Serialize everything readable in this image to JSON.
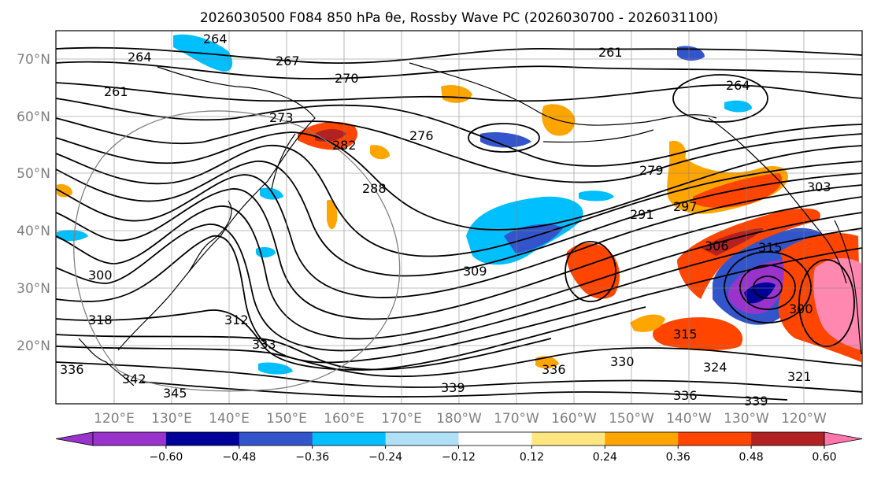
{
  "title": "2026030500 F084 850 hPa θe, Rossby Wave PC (2026030700 - 2026031100)",
  "map": {
    "lat_labels": [
      "70°N",
      "60°N",
      "50°N",
      "40°N",
      "30°N",
      "20°N"
    ],
    "lon_labels": [
      "120°E",
      "130°E",
      "140°E",
      "150°E",
      "160°E",
      "170°E",
      "180°W",
      "170°W",
      "160°W",
      "150°W",
      "140°W",
      "130°W",
      "120°W"
    ],
    "contour_labels": [
      "264",
      "264",
      "267",
      "270",
      "261",
      "261",
      "264",
      "273",
      "276",
      "282",
      "288",
      "279",
      "291",
      "297",
      "300",
      "303",
      "306",
      "309",
      "312",
      "315",
      "315",
      "318",
      "321",
      "324",
      "330",
      "333",
      "336",
      "336",
      "336",
      "339",
      "339",
      "342",
      "345",
      "300"
    ]
  },
  "colorbar": {
    "ticks": [
      "−0.60",
      "−0.48",
      "−0.36",
      "−0.24",
      "−0.12",
      "0.12",
      "0.24",
      "0.36",
      "0.48",
      "0.60"
    ],
    "colors": [
      "#9933cc",
      "#000099",
      "#3355cc",
      "#00bfff",
      "#b0e0f8",
      "#ffffff",
      "#ffe680",
      "#ffa500",
      "#ff4500",
      "#b22222",
      "#ff88b0",
      "#ff77aa"
    ]
  }
}
